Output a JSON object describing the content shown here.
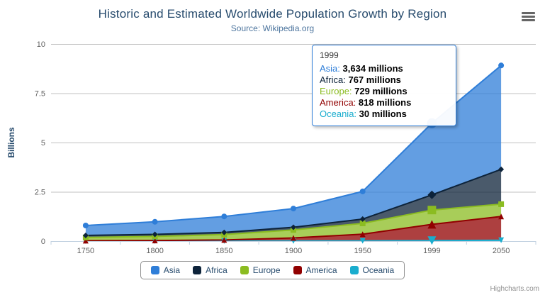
{
  "header": {
    "title": "Historic and Estimated Worldwide Population Growth by Region",
    "subtitle": "Source: Wikipedia.org"
  },
  "credits": {
    "label": "Highcharts.com"
  },
  "chart_data": {
    "type": "area",
    "stacking": "normal",
    "title": "Historic and Estimated Worldwide Population Growth by Region",
    "subtitle": "Source: Wikipedia.org",
    "categories": [
      "1750",
      "1800",
      "1850",
      "1900",
      "1950",
      "1999",
      "2050"
    ],
    "xlabel": "",
    "ylabel": "Billions",
    "ylim": [
      0,
      10
    ],
    "yticks": [
      0,
      2.5,
      5,
      7.5,
      10
    ],
    "ytick_labels": [
      "0",
      "2.5",
      "5",
      "7.5",
      "10"
    ],
    "values_unit": "millions",
    "grid": true,
    "legend_position": "bottom",
    "series": [
      {
        "name": "Asia",
        "color": "#2f7ed8",
        "marker": "circle",
        "values": [
          502,
          635,
          809,
          947,
          1402,
          3634,
          5268
        ]
      },
      {
        "name": "Africa",
        "color": "#0d233a",
        "marker": "diamond",
        "values": [
          106,
          107,
          111,
          133,
          221,
          767,
          1766
        ]
      },
      {
        "name": "Europe",
        "color": "#8bbc21",
        "marker": "square",
        "values": [
          163,
          203,
          276,
          408,
          547,
          729,
          628
        ]
      },
      {
        "name": "America",
        "color": "#910000",
        "marker": "triangle",
        "values": [
          18,
          31,
          54,
          156,
          339,
          818,
          1201
        ]
      },
      {
        "name": "Oceania",
        "color": "#1aadce",
        "marker": "triangle-down",
        "values": [
          2,
          2,
          2,
          6,
          13,
          30,
          46
        ]
      }
    ]
  },
  "tooltip": {
    "category": "1999",
    "rows": [
      {
        "name": "Asia",
        "value": "3,634 millions"
      },
      {
        "name": "Africa",
        "value": "767 millions"
      },
      {
        "name": "Europe",
        "value": "729 millions"
      },
      {
        "name": "America",
        "value": "818 millions"
      },
      {
        "name": "Oceania",
        "value": "30 millions"
      }
    ]
  }
}
